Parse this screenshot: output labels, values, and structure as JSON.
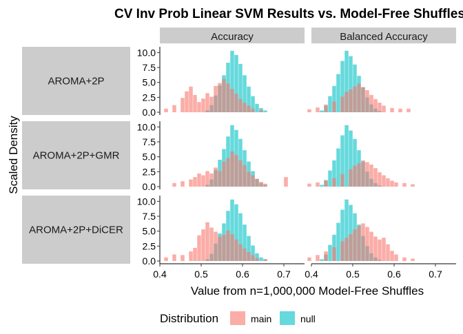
{
  "chart_data": {
    "type": "bar",
    "title": "CV Inv Prob Linear SVM Results vs. Model-Free Shuffles",
    "xlabel": "Value from n=1,000,000 Model-Free Shuffles",
    "ylabel": "Scaled Density",
    "legend": {
      "title": "Distribution",
      "position": "bottom",
      "entries": [
        {
          "label": "main",
          "color": "#F8766D"
        },
        {
          "label": "null",
          "color": "#00BFC4"
        }
      ]
    },
    "columns": [
      "Accuracy",
      "Balanced Accuracy"
    ],
    "rows": [
      "AROMA+2P",
      "AROMA+2P+GMR",
      "AROMA+2P+DiCER"
    ],
    "xlim": [
      0.4,
      0.75
    ],
    "ylim": [
      0,
      10.5
    ],
    "x_ticks": [
      "0.4",
      "0.5",
      "0.6",
      "0.7"
    ],
    "y_ticks": [
      "0.0",
      "2.5",
      "5.0",
      "7.5",
      "10.0"
    ],
    "bin_width": 0.01,
    "panels": [
      {
        "row": "AROMA+2P",
        "column": "Accuracy",
        "null_bins": [
          [
            0.515,
            0.3
          ],
          [
            0.525,
            1.2
          ],
          [
            0.535,
            2.8
          ],
          [
            0.545,
            4.5
          ],
          [
            0.555,
            6.2
          ],
          [
            0.565,
            8.3
          ],
          [
            0.575,
            10.3
          ],
          [
            0.585,
            9.6
          ],
          [
            0.595,
            8.1
          ],
          [
            0.605,
            6.2
          ],
          [
            0.615,
            4.3
          ],
          [
            0.625,
            2.7
          ],
          [
            0.635,
            1.4
          ],
          [
            0.645,
            0.7
          ],
          [
            0.655,
            0.3
          ]
        ],
        "main_bins": [
          [
            0.415,
            0.6
          ],
          [
            0.435,
            1.2
          ],
          [
            0.455,
            2.4
          ],
          [
            0.465,
            3.5
          ],
          [
            0.475,
            4.3
          ],
          [
            0.485,
            2.9
          ],
          [
            0.495,
            1.7
          ],
          [
            0.505,
            2.3
          ],
          [
            0.515,
            3.2
          ],
          [
            0.525,
            2.6
          ],
          [
            0.535,
            4.4
          ],
          [
            0.545,
            4.9
          ],
          [
            0.555,
            5.6
          ],
          [
            0.565,
            4.8
          ],
          [
            0.575,
            3.9
          ],
          [
            0.585,
            3.1
          ],
          [
            0.595,
            2.2
          ],
          [
            0.605,
            1.6
          ],
          [
            0.615,
            1.1
          ],
          [
            0.625,
            0.6
          ],
          [
            0.645,
            0.4
          ]
        ]
      },
      {
        "row": "AROMA+2P",
        "column": "Balanced Accuracy",
        "null_bins": [
          [
            0.425,
            0.3
          ],
          [
            0.435,
            1.1
          ],
          [
            0.445,
            2.7
          ],
          [
            0.455,
            4.4
          ],
          [
            0.465,
            6.4
          ],
          [
            0.475,
            8.6
          ],
          [
            0.485,
            10.3
          ],
          [
            0.495,
            9.4
          ],
          [
            0.505,
            8.0
          ],
          [
            0.515,
            6.1
          ],
          [
            0.525,
            4.2
          ],
          [
            0.535,
            2.5
          ],
          [
            0.545,
            1.3
          ],
          [
            0.555,
            0.6
          ],
          [
            0.565,
            0.2
          ]
        ],
        "main_bins": [
          [
            0.395,
            0.5
          ],
          [
            0.415,
            0.8
          ],
          [
            0.435,
            1.3
          ],
          [
            0.455,
            1.8
          ],
          [
            0.475,
            2.6
          ],
          [
            0.485,
            3.4
          ],
          [
            0.495,
            3.8
          ],
          [
            0.505,
            4.3
          ],
          [
            0.515,
            4.8
          ],
          [
            0.525,
            4.2
          ],
          [
            0.535,
            3.7
          ],
          [
            0.545,
            2.9
          ],
          [
            0.555,
            2.2
          ],
          [
            0.565,
            1.6
          ],
          [
            0.575,
            1.1
          ],
          [
            0.595,
            0.7
          ],
          [
            0.615,
            0.6
          ],
          [
            0.635,
            0.6
          ]
        ]
      },
      {
        "row": "AROMA+2P+GMR",
        "column": "Accuracy",
        "null_bins": [
          [
            0.515,
            0.3
          ],
          [
            0.525,
            1.2
          ],
          [
            0.535,
            2.8
          ],
          [
            0.545,
            4.5
          ],
          [
            0.555,
            6.3
          ],
          [
            0.565,
            8.4
          ],
          [
            0.575,
            10.3
          ],
          [
            0.585,
            9.5
          ],
          [
            0.595,
            8.0
          ],
          [
            0.605,
            6.1
          ],
          [
            0.615,
            4.2
          ],
          [
            0.625,
            2.6
          ],
          [
            0.635,
            1.3
          ],
          [
            0.645,
            0.6
          ],
          [
            0.655,
            0.3
          ]
        ],
        "main_bins": [
          [
            0.435,
            0.6
          ],
          [
            0.455,
            0.9
          ],
          [
            0.475,
            1.2
          ],
          [
            0.485,
            1.6
          ],
          [
            0.495,
            2.2
          ],
          [
            0.505,
            1.9
          ],
          [
            0.515,
            2.6
          ],
          [
            0.525,
            2.2
          ],
          [
            0.535,
            3.2
          ],
          [
            0.545,
            2.6
          ],
          [
            0.555,
            4.2
          ],
          [
            0.565,
            4.8
          ],
          [
            0.575,
            5.9
          ],
          [
            0.585,
            5.3
          ],
          [
            0.595,
            4.4
          ],
          [
            0.605,
            3.6
          ],
          [
            0.615,
            2.5
          ],
          [
            0.625,
            1.9
          ],
          [
            0.635,
            1.3
          ],
          [
            0.645,
            0.8
          ],
          [
            0.655,
            0.5
          ],
          [
            0.705,
            1.6
          ]
        ]
      },
      {
        "row": "AROMA+2P+GMR",
        "column": "Balanced Accuracy",
        "null_bins": [
          [
            0.425,
            0.3
          ],
          [
            0.435,
            1.1
          ],
          [
            0.445,
            2.7
          ],
          [
            0.455,
            4.4
          ],
          [
            0.465,
            6.4
          ],
          [
            0.475,
            8.6
          ],
          [
            0.485,
            10.3
          ],
          [
            0.495,
            9.4
          ],
          [
            0.505,
            8.0
          ],
          [
            0.515,
            6.1
          ],
          [
            0.525,
            4.2
          ],
          [
            0.535,
            2.5
          ],
          [
            0.545,
            1.3
          ],
          [
            0.555,
            0.6
          ],
          [
            0.565,
            0.2
          ]
        ],
        "main_bins": [
          [
            0.395,
            0.5
          ],
          [
            0.415,
            0.7
          ],
          [
            0.435,
            1.0
          ],
          [
            0.455,
            1.4
          ],
          [
            0.475,
            2.1
          ],
          [
            0.495,
            2.9
          ],
          [
            0.505,
            3.5
          ],
          [
            0.515,
            3.9
          ],
          [
            0.525,
            4.4
          ],
          [
            0.535,
            4.1
          ],
          [
            0.545,
            3.7
          ],
          [
            0.555,
            3.1
          ],
          [
            0.565,
            2.4
          ],
          [
            0.575,
            1.9
          ],
          [
            0.585,
            1.4
          ],
          [
            0.595,
            1.0
          ],
          [
            0.605,
            0.7
          ],
          [
            0.625,
            0.6
          ],
          [
            0.645,
            0.4
          ]
        ]
      },
      {
        "row": "AROMA+2P+DiCER",
        "column": "Accuracy",
        "null_bins": [
          [
            0.515,
            0.3
          ],
          [
            0.525,
            1.2
          ],
          [
            0.535,
            2.9
          ],
          [
            0.545,
            4.6
          ],
          [
            0.555,
            6.3
          ],
          [
            0.565,
            8.4
          ],
          [
            0.575,
            10.3
          ],
          [
            0.585,
            9.5
          ],
          [
            0.595,
            8.0
          ],
          [
            0.605,
            6.1
          ],
          [
            0.615,
            4.2
          ],
          [
            0.625,
            2.6
          ],
          [
            0.635,
            1.3
          ],
          [
            0.645,
            0.6
          ],
          [
            0.655,
            0.3
          ]
        ],
        "main_bins": [
          [
            0.415,
            0.6
          ],
          [
            0.435,
            1.1
          ],
          [
            0.455,
            1.0
          ],
          [
            0.475,
            1.6
          ],
          [
            0.485,
            2.2
          ],
          [
            0.495,
            4.3
          ],
          [
            0.505,
            5.3
          ],
          [
            0.515,
            6.5
          ],
          [
            0.525,
            5.6
          ],
          [
            0.535,
            4.9
          ],
          [
            0.545,
            4.1
          ],
          [
            0.555,
            4.4
          ],
          [
            0.565,
            5.1
          ],
          [
            0.575,
            4.5
          ],
          [
            0.585,
            3.6
          ],
          [
            0.595,
            2.8
          ],
          [
            0.605,
            2.1
          ],
          [
            0.615,
            1.5
          ],
          [
            0.625,
            1.0
          ],
          [
            0.635,
            0.5
          ],
          [
            0.655,
            0.3
          ]
        ]
      },
      {
        "row": "AROMA+2P+DiCER",
        "column": "Balanced Accuracy",
        "null_bins": [
          [
            0.425,
            0.3
          ],
          [
            0.435,
            1.1
          ],
          [
            0.445,
            2.7
          ],
          [
            0.455,
            4.4
          ],
          [
            0.465,
            6.4
          ],
          [
            0.475,
            8.6
          ],
          [
            0.485,
            10.3
          ],
          [
            0.495,
            9.4
          ],
          [
            0.505,
            8.0
          ],
          [
            0.515,
            6.1
          ],
          [
            0.525,
            4.2
          ],
          [
            0.535,
            2.5
          ],
          [
            0.545,
            1.3
          ],
          [
            0.555,
            0.6
          ],
          [
            0.565,
            0.2
          ]
        ],
        "main_bins": [
          [
            0.395,
            0.6
          ],
          [
            0.415,
            1.0
          ],
          [
            0.435,
            1.6
          ],
          [
            0.455,
            2.3
          ],
          [
            0.475,
            3.3
          ],
          [
            0.485,
            3.9
          ],
          [
            0.495,
            4.5
          ],
          [
            0.505,
            5.3
          ],
          [
            0.515,
            5.9
          ],
          [
            0.525,
            6.3
          ],
          [
            0.535,
            5.7
          ],
          [
            0.545,
            4.9
          ],
          [
            0.555,
            4.1
          ],
          [
            0.565,
            3.6
          ],
          [
            0.575,
            3.9
          ],
          [
            0.585,
            2.8
          ],
          [
            0.595,
            1.7
          ],
          [
            0.605,
            1.1
          ],
          [
            0.625,
            0.6
          ],
          [
            0.645,
            0.4
          ]
        ]
      }
    ]
  }
}
